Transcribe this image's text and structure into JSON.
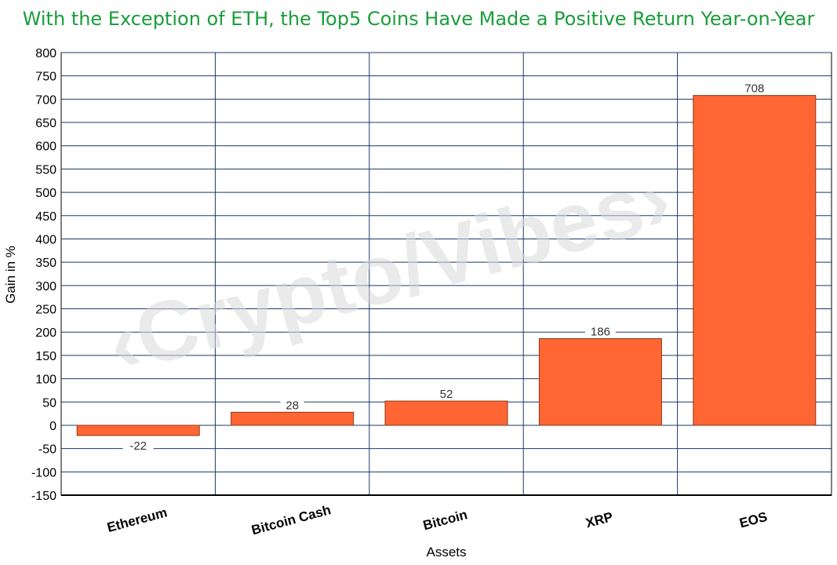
{
  "chart_data": {
    "type": "bar",
    "title": "With the Exception of ETH, the Top5 Coins Have Made a Positive Return Year-on-Year",
    "xlabel": "Assets",
    "ylabel": "Gain in %",
    "categories": [
      "Ethereum",
      "Bitcoin Cash",
      "Bitcoin",
      "XRP",
      "EOS"
    ],
    "values": [
      -22,
      28,
      52,
      186,
      708
    ],
    "ylim": [
      -150,
      800
    ],
    "ytick_step": 50,
    "grid": true,
    "bar_color": "#ff6633",
    "grid_color": "#1f3864",
    "title_color": "#1a9e3a"
  },
  "watermark": {
    "text": "‹Crypto/Vibes›"
  }
}
